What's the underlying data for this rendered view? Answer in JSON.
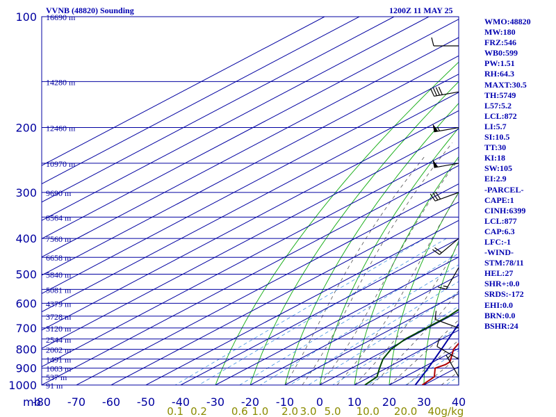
{
  "title_left": "VVNB (48820) Sounding",
  "title_right": "1200Z 11 MAY 25",
  "indices": [
    "WMO:48820",
    "MW:180",
    "FRZ:546",
    "WB0:599",
    "PW:1.51",
    "RH:64.3",
    "MAXT:30.5",
    "TH:5749",
    "L57:5.2",
    "LCL:872",
    "LI:5.7",
    "SI:10.5",
    "TT:30",
    "KI:18",
    "SW:105",
    "EI:2.9",
    "-PARCEL-",
    "CAPE:1",
    "CINH:6399",
    "LCL:877",
    "CAP:6.3",
    "LFC:-1",
    "-WIND-",
    "STM:78/11",
    "HEL:27",
    "SHR+:0.0",
    "SRDS:-172",
    "EHI:0.0",
    "BRN:0.0",
    "BSHR:24"
  ],
  "chart_data": {
    "type": "line",
    "subtype": "skew-T log-P",
    "y_scale": "log",
    "ylim_mb": [
      100,
      1000
    ],
    "xlim_c": [
      -80,
      40
    ],
    "y_unit_label": "mb",
    "pressure_ticks": [
      100,
      200,
      300,
      400,
      500,
      600,
      700,
      800,
      900,
      1000
    ],
    "temp_ticks": [
      -80,
      -70,
      -60,
      -50,
      -40,
      -30,
      -20,
      -10,
      0,
      10,
      20,
      30,
      40
    ],
    "mixing_ratio_labels": [
      "0.1",
      "0.2",
      "0.6",
      "1.0",
      "2.0",
      "3.0",
      "5.0",
      "10.0",
      "20.0",
      "40g/kg"
    ],
    "height_levels": [
      {
        "p": 100,
        "label": "16690 m"
      },
      {
        "p": 150,
        "label": "14280 m"
      },
      {
        "p": 200,
        "label": "12460 m"
      },
      {
        "p": 250,
        "label": "10970 m"
      },
      {
        "p": 300,
        "label": "9690 m"
      },
      {
        "p": 350,
        "label": "8564 m"
      },
      {
        "p": 400,
        "label": "7560 m"
      },
      {
        "p": 450,
        "label": "6658 m"
      },
      {
        "p": 500,
        "label": "5840 m"
      },
      {
        "p": 550,
        "label": "5081 m"
      },
      {
        "p": 600,
        "label": "4379 m"
      },
      {
        "p": 650,
        "label": "3728 m"
      },
      {
        "p": 700,
        "label": "3120 m"
      },
      {
        "p": 750,
        "label": "2544 m"
      },
      {
        "p": 800,
        "label": "2002 m"
      },
      {
        "p": 850,
        "label": "1491 m"
      },
      {
        "p": 900,
        "label": "1003 m"
      },
      {
        "p": 950,
        "label": "537 m"
      },
      {
        "p": 1000,
        "label": "91 m"
      }
    ],
    "series": [
      {
        "color": "#b00000",
        "points": [
          [
            105,
            -78
          ],
          [
            125,
            -73
          ],
          [
            150,
            -65
          ],
          [
            175,
            -57
          ],
          [
            200,
            -52
          ],
          [
            250,
            -39
          ],
          [
            300,
            -30
          ],
          [
            350,
            -22.5
          ],
          [
            375,
            -18.5
          ],
          [
            400,
            -16
          ],
          [
            450,
            -10
          ],
          [
            500,
            -6
          ],
          [
            550,
            0
          ],
          [
            575,
            3.8
          ],
          [
            600,
            6
          ],
          [
            650,
            9
          ],
          [
            700,
            12
          ],
          [
            750,
            16
          ],
          [
            800,
            19
          ],
          [
            850,
            23.5
          ],
          [
            865,
            24.8
          ],
          [
            880,
            25
          ],
          [
            900,
            24
          ],
          [
            950,
            28.5
          ],
          [
            1000,
            29.5
          ]
        ]
      },
      {
        "color": "#0000a0",
        "points": [
          [
            150,
            -80
          ],
          [
            200,
            -64
          ],
          [
            250,
            -51
          ],
          [
            300,
            -39.5
          ],
          [
            400,
            -22.5
          ],
          [
            500,
            -9.5
          ],
          [
            600,
            -0.5
          ],
          [
            700,
            8
          ],
          [
            800,
            15.5
          ],
          [
            900,
            22
          ],
          [
            1000,
            27.5
          ]
        ]
      },
      {
        "color": "#004800",
        "points": [
          [
            150,
            -80
          ],
          [
            160,
            -75
          ],
          [
            175,
            -70
          ],
          [
            190,
            -65
          ],
          [
            200,
            -60
          ],
          [
            210,
            -55
          ],
          [
            225,
            -50
          ],
          [
            250,
            -45
          ],
          [
            275,
            -43
          ],
          [
            300,
            -28
          ],
          [
            320,
            -34
          ],
          [
            340,
            -40
          ],
          [
            360,
            -42
          ],
          [
            375,
            -39
          ],
          [
            385,
            -41
          ],
          [
            400,
            -34
          ],
          [
            430,
            -30
          ],
          [
            460,
            -27
          ],
          [
            480,
            -21
          ],
          [
            490,
            -17
          ],
          [
            500,
            -20
          ],
          [
            510,
            -17
          ],
          [
            530,
            -12
          ],
          [
            540,
            -8
          ],
          [
            550,
            -6
          ],
          [
            600,
            -2
          ],
          [
            650,
            -0.5
          ],
          [
            700,
            -0.5
          ],
          [
            750,
            -0.5
          ],
          [
            800,
            1
          ],
          [
            850,
            4
          ],
          [
            900,
            8
          ],
          [
            950,
            12
          ],
          [
            1000,
            13
          ]
        ]
      }
    ],
    "wind_barbs": [
      {
        "p": 120,
        "dir": 270,
        "spd": 10
      },
      {
        "p": 160,
        "dir": 260,
        "spd": 40
      },
      {
        "p": 200,
        "dir": 260,
        "spd": 55
      },
      {
        "p": 250,
        "dir": 260,
        "spd": 50
      },
      {
        "p": 300,
        "dir": 250,
        "spd": 30
      },
      {
        "p": 400,
        "dir": 230,
        "spd": 20
      },
      {
        "p": 480,
        "dir": 210,
        "spd": 15
      },
      {
        "p": 700,
        "dir": 290,
        "spd": 10
      },
      {
        "p": 850,
        "dir": 300,
        "spd": 10
      },
      {
        "p": 950,
        "dir": 330,
        "spd": 5
      }
    ],
    "grid": true
  }
}
